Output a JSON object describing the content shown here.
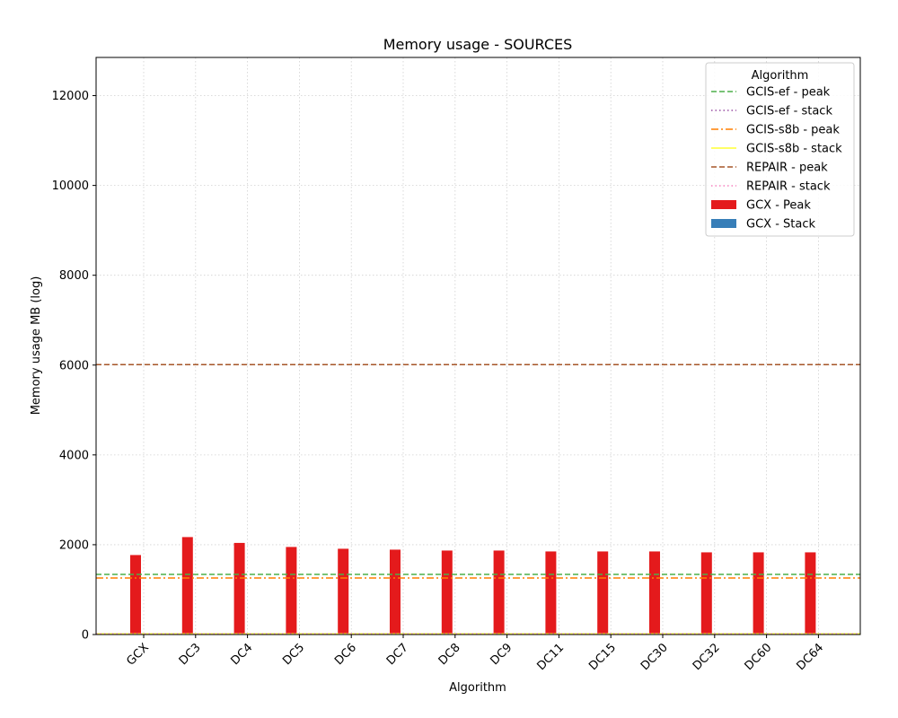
{
  "chart_data": {
    "type": "bar",
    "title": "Memory usage -  SOURCES",
    "xlabel": "Algorithm",
    "ylabel": "Memory usage MB (log)",
    "ylim": [
      0,
      12850
    ],
    "yticks": [
      0,
      2000,
      4000,
      6000,
      8000,
      10000,
      12000
    ],
    "grid": true,
    "categories": [
      "GCX",
      "DC3",
      "DC4",
      "DC5",
      "DC6",
      "DC7",
      "DC8",
      "DC9",
      "DC11",
      "DC15",
      "DC30",
      "DC32",
      "DC60",
      "DC64"
    ],
    "series": [
      {
        "name": "GCX - Peak",
        "color": "#e41a1c",
        "values": [
          1770,
          2170,
          2040,
          1950,
          1910,
          1890,
          1870,
          1870,
          1850,
          1850,
          1850,
          1830,
          1830,
          1830
        ]
      },
      {
        "name": "GCX - Stack",
        "color": "#377eb8",
        "values": [
          0,
          0,
          0,
          0,
          0,
          0,
          0,
          0,
          0,
          0,
          0,
          0,
          0,
          0
        ]
      }
    ],
    "reference_lines": [
      {
        "name": "GCIS-ef  - peak",
        "value": 1340,
        "color": "#4daf4a",
        "style": "dashed"
      },
      {
        "name": "GCIS-ef - stack",
        "value": 15,
        "color": "#984ea3",
        "style": "dotted"
      },
      {
        "name": "GCIS-s8b  - peak",
        "value": 1260,
        "color": "#ff7f00",
        "style": "dashdot"
      },
      {
        "name": "GCIS-s8b - stack",
        "value": 15,
        "color": "#ffff33",
        "style": "solid"
      },
      {
        "name": "REPAIR  - peak",
        "value": 6010,
        "color": "#a65628",
        "style": "dashed"
      },
      {
        "name": "REPAIR - stack",
        "value": 15,
        "color": "#f781bf",
        "style": "dotted"
      }
    ],
    "legend": {
      "title": "Algorithm",
      "placement": "top-right"
    }
  }
}
